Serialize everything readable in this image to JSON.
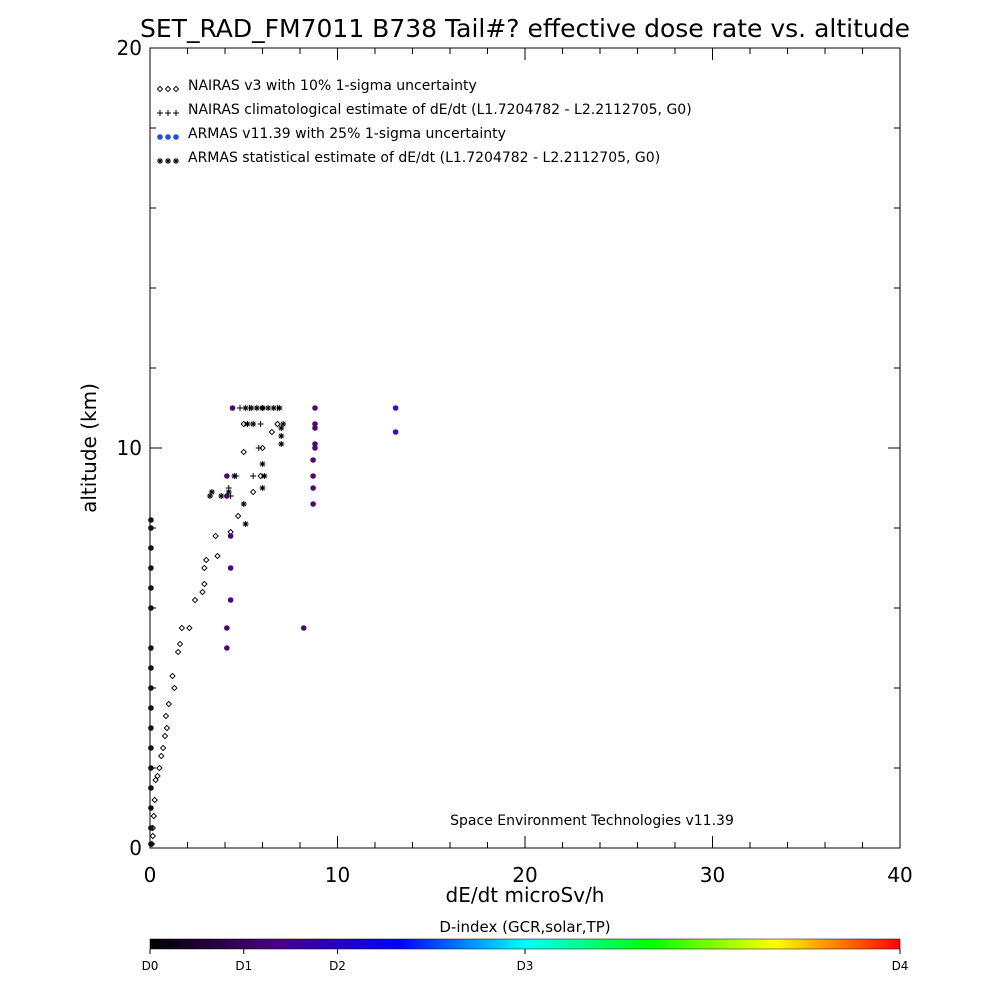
{
  "chart_data": {
    "type": "scatter",
    "title": "SET_RAD_FM7011  B738 Tail#? effective dose rate vs. altitude",
    "xlabel": "dE/dt microSv/h",
    "ylabel": "altitude (km)",
    "xlim": [
      0,
      40
    ],
    "ylim": [
      0,
      20
    ],
    "xticks": [
      0,
      10,
      20,
      30,
      40
    ],
    "yticks": [
      0,
      10,
      20
    ],
    "xtick_labels": [
      "0",
      "10",
      "20",
      "30",
      "40"
    ],
    "ytick_labels": [
      "0",
      "10",
      "20"
    ],
    "credit": "Space Environment Technologies v11.39",
    "legend_position": "top-left",
    "legend": [
      {
        "marker": "diamond",
        "symbols": "◇◇◇",
        "label": "NAIRAS v3 with 10% 1-sigma uncertainty"
      },
      {
        "marker": "plus",
        "symbols": "+++",
        "label": "NAIRAS climatological estimate of dE/dt (L1.7204782 - L2.2112705, G0)"
      },
      {
        "marker": "dot",
        "symbols": "●●●",
        "label": "ARMAS v11.39 with 25% 1-sigma uncertainty"
      },
      {
        "marker": "asterisk",
        "symbols": "***",
        "label": "ARMAS statistical estimate of dE/dt (L1.7204782 - L2.2112705, G0)"
      }
    ],
    "series": [
      {
        "name": "NAIRAS v3 with 10% 1-sigma uncertainty",
        "marker": "diamond",
        "points": [
          [
            0.1,
            0.1
          ],
          [
            0.15,
            0.3
          ],
          [
            0.15,
            0.5
          ],
          [
            0.2,
            0.8
          ],
          [
            0.25,
            1.2
          ],
          [
            0.3,
            1.7
          ],
          [
            0.4,
            1.8
          ],
          [
            0.5,
            2.0
          ],
          [
            0.6,
            2.3
          ],
          [
            0.7,
            2.5
          ],
          [
            0.8,
            2.8
          ],
          [
            0.9,
            3.0
          ],
          [
            0.85,
            3.3
          ],
          [
            1.0,
            3.6
          ],
          [
            1.3,
            4.0
          ],
          [
            1.2,
            4.3
          ],
          [
            1.5,
            4.9
          ],
          [
            1.6,
            5.1
          ],
          [
            1.7,
            5.5
          ],
          [
            2.1,
            5.5
          ],
          [
            2.4,
            6.2
          ],
          [
            2.8,
            6.4
          ],
          [
            2.9,
            6.6
          ],
          [
            2.9,
            7.0
          ],
          [
            3.0,
            7.2
          ],
          [
            3.6,
            7.3
          ],
          [
            3.5,
            7.8
          ],
          [
            4.3,
            7.9
          ],
          [
            4.7,
            8.3
          ],
          [
            5.5,
            8.9
          ],
          [
            5.9,
            9.3
          ],
          [
            5.0,
            9.9
          ],
          [
            6.0,
            10.0
          ],
          [
            6.5,
            10.4
          ],
          [
            6.8,
            10.6
          ],
          [
            5.0,
            10.6
          ],
          [
            6.0,
            11.0
          ]
        ]
      },
      {
        "name": "NAIRAS climatological estimate of dE/dt (L1.7204782 - L2.2112705, G0)",
        "marker": "plus",
        "points": [
          [
            4.3,
            8.8
          ],
          [
            4.2,
            9.0
          ],
          [
            5.5,
            9.3
          ],
          [
            4.6,
            9.3
          ],
          [
            5.8,
            10.0
          ],
          [
            5.9,
            10.6
          ],
          [
            4.8,
            11.0
          ],
          [
            5.3,
            11.0
          ],
          [
            6.8,
            11.0
          ]
        ]
      },
      {
        "name": "ARMAS v11.39 with 25% 1-sigma uncertainty",
        "marker": "dot",
        "points": [
          [
            0.05,
            0.1
          ],
          [
            0.05,
            0.5
          ],
          [
            0.05,
            1.0
          ],
          [
            0.05,
            1.5
          ],
          [
            0.05,
            2.0
          ],
          [
            0.05,
            2.5
          ],
          [
            0.05,
            3.0
          ],
          [
            0.05,
            3.5
          ],
          [
            0.05,
            4.0
          ],
          [
            0.05,
            4.5
          ],
          [
            0.05,
            5.0
          ],
          [
            0.05,
            6.0
          ],
          [
            0.05,
            6.5
          ],
          [
            0.05,
            7.0
          ],
          [
            0.05,
            7.5
          ],
          [
            0.05,
            8.0
          ],
          [
            0.05,
            8.2
          ],
          [
            4.1,
            5.0
          ],
          [
            4.1,
            5.5
          ],
          [
            4.3,
            6.2
          ],
          [
            4.3,
            7.0
          ],
          [
            4.3,
            7.8
          ],
          [
            4.1,
            8.8
          ],
          [
            4.1,
            9.3
          ],
          [
            4.4,
            11.0
          ],
          [
            8.2,
            5.5
          ],
          [
            8.7,
            8.6
          ],
          [
            8.7,
            9.0
          ],
          [
            8.7,
            9.3
          ],
          [
            8.7,
            9.7
          ],
          [
            8.8,
            10.0
          ],
          [
            8.8,
            10.1
          ],
          [
            8.8,
            10.5
          ],
          [
            8.8,
            10.6
          ],
          [
            8.8,
            11.0
          ],
          [
            13.1,
            10.4
          ],
          [
            13.1,
            11.0
          ]
        ]
      },
      {
        "name": "ARMAS statistical estimate of dE/dt (L1.7204782 - L2.2112705, G0)",
        "marker": "asterisk",
        "points": [
          [
            3.2,
            8.8
          ],
          [
            3.3,
            8.9
          ],
          [
            3.8,
            8.8
          ],
          [
            4.2,
            8.9
          ],
          [
            5.0,
            8.6
          ],
          [
            5.1,
            8.1
          ],
          [
            4.5,
            9.3
          ],
          [
            6.0,
            9.0
          ],
          [
            6.1,
            9.3
          ],
          [
            6.0,
            9.6
          ],
          [
            5.2,
            10.6
          ],
          [
            5.5,
            10.6
          ],
          [
            7.0,
            10.1
          ],
          [
            7.0,
            10.3
          ],
          [
            7.0,
            10.5
          ],
          [
            7.1,
            10.6
          ],
          [
            5.1,
            11.0
          ],
          [
            5.4,
            11.0
          ],
          [
            5.7,
            11.0
          ],
          [
            6.0,
            11.0
          ],
          [
            6.3,
            11.0
          ],
          [
            6.6,
            11.0
          ],
          [
            6.9,
            11.0
          ]
        ]
      }
    ],
    "colorbar": {
      "title": "D-index (GCR,solar,TP)",
      "labels": [
        {
          "text": "D0",
          "frac": 0.0
        },
        {
          "text": "D1",
          "frac": 0.125
        },
        {
          "text": "D2",
          "frac": 0.25
        },
        {
          "text": "D3",
          "frac": 0.5
        },
        {
          "text": "D4",
          "frac": 1.0
        }
      ],
      "stops": [
        "#000000",
        "#4b0082",
        "#0000ff",
        "#00ffff",
        "#00ff00",
        "#ffff00",
        "#ff0000"
      ]
    },
    "colors": {
      "armas_dot": "#4b0a6e",
      "armas_dot_high": "#3a0ad0",
      "marker": "#000000"
    }
  }
}
